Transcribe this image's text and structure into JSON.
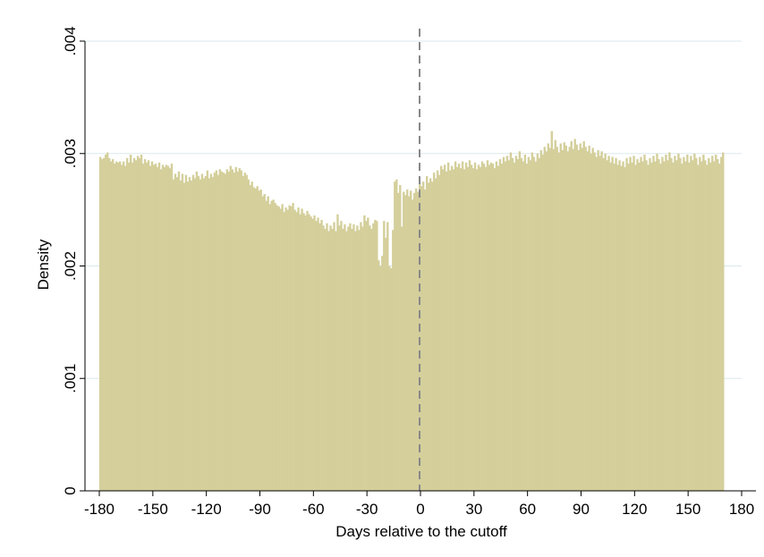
{
  "chart_data": {
    "type": "bar",
    "title": "",
    "xlabel": "Days relative to the cutoff",
    "ylabel": "Density",
    "xlim": [
      -180,
      180
    ],
    "ylim": [
      0,
      0.004
    ],
    "x_ticks": [
      -180,
      -150,
      -120,
      -90,
      -60,
      -30,
      0,
      30,
      60,
      90,
      120,
      150,
      180
    ],
    "x_tick_labels": [
      "-180",
      "-150",
      "-120",
      "-90",
      "-60",
      "-30",
      "0",
      "30",
      "60",
      "90",
      "120",
      "150",
      "180"
    ],
    "y_ticks": [
      0,
      0.001,
      0.002,
      0.003,
      0.004
    ],
    "y_tick_labels": [
      "0",
      ".001",
      ".002",
      ".003",
      ".004"
    ],
    "grid": "horizontal",
    "legend": "none",
    "reference_line": {
      "x": 0,
      "style": "dashed",
      "color": "#888888"
    },
    "bar_color": "#d4cf9b",
    "gridline_color": "#dbe8ec",
    "series": [
      {
        "x_start": -180,
        "bin_width": 1,
        "values": [
          0.00297,
          0.00295,
          0.00296,
          0.00299,
          0.00301,
          0.00296,
          0.00293,
          0.00295,
          0.00291,
          0.00293,
          0.00292,
          0.00293,
          0.0029,
          0.00293,
          0.00289,
          0.00296,
          0.00292,
          0.00299,
          0.00292,
          0.00296,
          0.00294,
          0.00298,
          0.00296,
          0.00299,
          0.00291,
          0.00295,
          0.00292,
          0.00294,
          0.00289,
          0.00293,
          0.0029,
          0.00291,
          0.00288,
          0.00292,
          0.00286,
          0.0029,
          0.00288,
          0.0029,
          0.00289,
          0.00287,
          0.00291,
          0.00277,
          0.00282,
          0.00279,
          0.00284,
          0.00276,
          0.00282,
          0.00274,
          0.00281,
          0.00275,
          0.00279,
          0.00276,
          0.00281,
          0.00278,
          0.00284,
          0.0028,
          0.00277,
          0.00282,
          0.00278,
          0.0028,
          0.00285,
          0.00278,
          0.00282,
          0.00279,
          0.00283,
          0.00285,
          0.00281,
          0.00286,
          0.00284,
          0.00283,
          0.00282,
          0.00286,
          0.00284,
          0.00289,
          0.00286,
          0.00283,
          0.00288,
          0.00284,
          0.00287,
          0.00285,
          0.0028,
          0.00283,
          0.00281,
          0.00277,
          0.00272,
          0.00275,
          0.0027,
          0.00269,
          0.00271,
          0.00267,
          0.00268,
          0.00262,
          0.00264,
          0.00258,
          0.00262,
          0.00255,
          0.00258,
          0.00259,
          0.00256,
          0.00254,
          0.00253,
          0.00251,
          0.00255,
          0.00248,
          0.00252,
          0.0025,
          0.00254,
          0.00253,
          0.00256,
          0.0025,
          0.00248,
          0.00252,
          0.00246,
          0.00251,
          0.00247,
          0.00245,
          0.00249,
          0.00246,
          0.00244,
          0.00242,
          0.00245,
          0.0024,
          0.00243,
          0.00238,
          0.00241,
          0.00236,
          0.00233,
          0.00238,
          0.00231,
          0.00236,
          0.00233,
          0.00239,
          0.00231,
          0.00246,
          0.00236,
          0.0024,
          0.00233,
          0.00237,
          0.00231,
          0.00235,
          0.00238,
          0.00233,
          0.00237,
          0.00231,
          0.00236,
          0.00232,
          0.00239,
          0.00235,
          0.00245,
          0.0024,
          0.00243,
          0.00236,
          0.00233,
          0.00238,
          0.00241,
          0.0024,
          0.00205,
          0.002,
          0.00209,
          0.0024,
          0.00225,
          0.00239,
          0.002,
          0.00198,
          0.00232,
          0.00275,
          0.00277,
          0.00265,
          0.00272,
          0.00235,
          0.00266,
          0.00263,
          0.00268,
          0.00262,
          0.00267,
          0.00259,
          0.00265,
          0.00269,
          0.00266,
          0.00274,
          0.00271,
          0.00275,
          0.00268,
          0.0028,
          0.00274,
          0.00278,
          0.00275,
          0.00283,
          0.00278,
          0.00285,
          0.00281,
          0.00289,
          0.00286,
          0.0029,
          0.00284,
          0.00292,
          0.00285,
          0.00289,
          0.00286,
          0.00293,
          0.00288,
          0.00291,
          0.00287,
          0.00293,
          0.00286,
          0.00292,
          0.00288,
          0.00294,
          0.0029,
          0.00287,
          0.00292,
          0.00286,
          0.0029,
          0.00288,
          0.00293,
          0.00291,
          0.00288,
          0.00294,
          0.0029,
          0.00292,
          0.00291,
          0.00287,
          0.00293,
          0.00289,
          0.00295,
          0.00291,
          0.00297,
          0.00293,
          0.00298,
          0.00294,
          0.00301,
          0.00296,
          0.00292,
          0.00298,
          0.00295,
          0.00302,
          0.00296,
          0.00293,
          0.00299,
          0.00291,
          0.00297,
          0.00294,
          0.00301,
          0.00297,
          0.00293,
          0.003,
          0.00296,
          0.00303,
          0.00299,
          0.00306,
          0.00302,
          0.00309,
          0.00305,
          0.0032,
          0.00304,
          0.00312,
          0.00306,
          0.00301,
          0.00309,
          0.00303,
          0.0031,
          0.00307,
          0.00302,
          0.00306,
          0.00311,
          0.00304,
          0.00313,
          0.00308,
          0.00303,
          0.00309,
          0.00305,
          0.00311,
          0.00306,
          0.00302,
          0.00307,
          0.003,
          0.00305,
          0.00301,
          0.00297,
          0.00303,
          0.00298,
          0.00302,
          0.00296,
          0.003,
          0.00294,
          0.00298,
          0.00292,
          0.00297,
          0.00291,
          0.00296,
          0.0029,
          0.00294,
          0.00289,
          0.00293,
          0.00288,
          0.00296,
          0.00291,
          0.00297,
          0.00292,
          0.00298,
          0.0029,
          0.00295,
          0.00292,
          0.00297,
          0.00293,
          0.00299,
          0.00294,
          0.0029,
          0.00296,
          0.00292,
          0.00298,
          0.00293,
          0.003,
          0.00295,
          0.00291,
          0.00297,
          0.00293,
          0.00299,
          0.00294,
          0.00301,
          0.00296,
          0.00292,
          0.00298,
          0.00294,
          0.003,
          0.00296,
          0.00291,
          0.00297,
          0.00293,
          0.00299,
          0.00292,
          0.00298,
          0.00294,
          0.003,
          0.00296,
          0.0029,
          0.00297,
          0.00293,
          0.00299,
          0.00294,
          0.0029,
          0.00296,
          0.00292,
          0.00298,
          0.00293,
          0.00299,
          0.00295,
          0.00291,
          0.00297,
          0.00301
        ]
      }
    ]
  }
}
